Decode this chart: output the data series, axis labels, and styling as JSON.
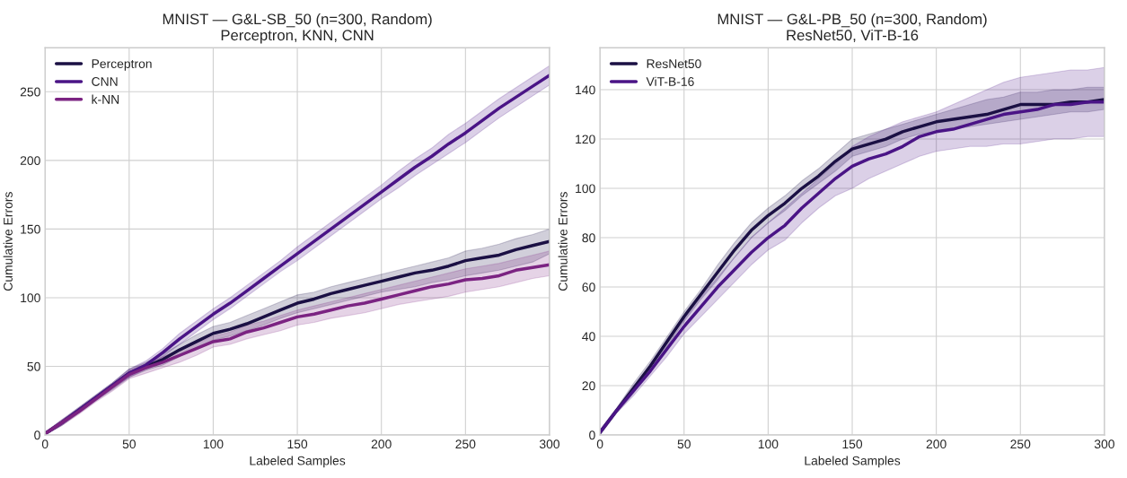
{
  "chart_data": [
    {
      "type": "line",
      "title": "MNIST — G&L-SB_50 (n=300, Random)",
      "subtitle": "Perceptron, KNN, CNN",
      "xlabel": "Labeled Samples",
      "ylabel": "Cumulative Errors",
      "x": [
        0,
        10,
        20,
        30,
        40,
        50,
        60,
        70,
        80,
        90,
        100,
        110,
        120,
        130,
        140,
        150,
        160,
        170,
        180,
        190,
        200,
        210,
        220,
        230,
        240,
        250,
        260,
        270,
        280,
        290,
        300
      ],
      "xlim": [
        0,
        300
      ],
      "xticks": [
        0,
        50,
        100,
        150,
        200,
        250,
        300
      ],
      "ylim": [
        0,
        282
      ],
      "yticks": [
        0,
        50,
        100,
        150,
        200,
        250
      ],
      "grid": true,
      "legend": "top left",
      "series": [
        {
          "name": "Perceptron",
          "color": "#1b1044",
          "values": [
            1,
            9,
            18,
            27,
            36,
            45,
            50,
            55,
            62,
            68,
            74,
            77,
            81,
            86,
            91,
            96,
            99,
            103,
            106,
            109,
            112,
            115,
            118,
            120,
            123,
            127,
            129,
            131,
            135,
            138,
            141
          ],
          "lower": [
            0,
            7,
            16,
            25,
            33,
            42,
            47,
            51,
            57,
            63,
            69,
            72,
            76,
            80,
            85,
            89,
            92,
            95,
            98,
            101,
            104,
            106,
            108,
            111,
            113,
            116,
            118,
            120,
            123,
            126,
            132
          ],
          "upper": [
            2,
            11,
            20,
            29,
            38,
            48,
            53,
            59,
            66,
            73,
            79,
            82,
            87,
            92,
            97,
            102,
            104,
            108,
            111,
            114,
            117,
            120,
            123,
            126,
            129,
            134,
            136,
            139,
            143,
            146,
            150
          ]
        },
        {
          "name": "CNN",
          "color": "#4a1486",
          "values": [
            1,
            9,
            18,
            27,
            36,
            45,
            51,
            60,
            70,
            79,
            88,
            96,
            105,
            114,
            123,
            132,
            141,
            150,
            159,
            168,
            177,
            186,
            195,
            203,
            212,
            220,
            229,
            238,
            246,
            254,
            262
          ],
          "lower": [
            0,
            7,
            16,
            25,
            34,
            42,
            48,
            57,
            66,
            75,
            84,
            92,
            101,
            110,
            119,
            127,
            136,
            145,
            154,
            163,
            172,
            180,
            189,
            197,
            205,
            213,
            222,
            231,
            239,
            247,
            255
          ],
          "upper": [
            2,
            11,
            20,
            29,
            38,
            48,
            54,
            63,
            74,
            83,
            92,
            100,
            109,
            118,
            127,
            137,
            146,
            155,
            164,
            173,
            182,
            192,
            201,
            209,
            219,
            227,
            236,
            245,
            253,
            261,
            269
          ]
        },
        {
          "name": "k-NN",
          "color": "#7b2382",
          "values": [
            1,
            9,
            17,
            26,
            35,
            44,
            49,
            53,
            58,
            63,
            68,
            70,
            75,
            78,
            82,
            86,
            88,
            91,
            94,
            96,
            99,
            102,
            105,
            108,
            110,
            113,
            114,
            116,
            120,
            122,
            124
          ],
          "lower": [
            0,
            7,
            15,
            24,
            32,
            41,
            45,
            49,
            53,
            58,
            64,
            66,
            70,
            73,
            76,
            80,
            82,
            85,
            87,
            89,
            92,
            95,
            97,
            99,
            101,
            104,
            106,
            108,
            111,
            114,
            116
          ],
          "upper": [
            2,
            11,
            19,
            28,
            37,
            47,
            52,
            57,
            62,
            67,
            72,
            75,
            80,
            83,
            87,
            91,
            94,
            97,
            100,
            103,
            106,
            109,
            112,
            115,
            118,
            121,
            123,
            125,
            128,
            131,
            134
          ]
        }
      ]
    },
    {
      "type": "line",
      "title": "MNIST — G&L-PB_50 (n=300, Random)",
      "subtitle": "ResNet50, ViT-B-16",
      "xlabel": "Labeled Samples",
      "ylabel": "Cumulative Errors",
      "x": [
        0,
        10,
        20,
        30,
        40,
        50,
        60,
        70,
        80,
        90,
        100,
        110,
        120,
        130,
        140,
        150,
        160,
        170,
        180,
        190,
        200,
        210,
        220,
        230,
        240,
        250,
        260,
        270,
        280,
        290,
        300
      ],
      "xlim": [
        0,
        300
      ],
      "xticks": [
        0,
        50,
        100,
        150,
        200,
        250,
        300
      ],
      "ylim": [
        0,
        157
      ],
      "yticks": [
        0,
        20,
        40,
        60,
        80,
        100,
        120,
        140
      ],
      "grid": true,
      "legend": "top left",
      "series": [
        {
          "name": "ResNet50",
          "color": "#1b1044",
          "values": [
            1,
            10,
            19,
            28,
            38,
            48,
            57,
            66,
            75,
            83,
            89,
            94,
            100,
            105,
            111,
            116,
            118,
            120,
            123,
            125,
            127,
            128,
            129,
            130,
            132,
            134,
            134,
            134,
            135,
            135,
            136
          ],
          "lower": [
            0,
            9,
            17,
            26,
            36,
            46,
            55,
            63,
            72,
            80,
            86,
            91,
            97,
            102,
            107,
            113,
            115,
            117,
            120,
            122,
            123,
            124,
            125,
            126,
            127,
            128,
            129,
            130,
            131,
            131,
            132
          ],
          "upper": [
            2,
            11,
            21,
            30,
            40,
            50,
            59,
            69,
            78,
            86,
            92,
            97,
            103,
            108,
            114,
            120,
            122,
            124,
            126,
            128,
            130,
            132,
            134,
            136,
            137,
            139,
            139,
            140,
            140,
            141,
            141
          ]
        },
        {
          "name": "ViT-B-16",
          "color": "#4a1486",
          "values": [
            1,
            10,
            18,
            26,
            35,
            44,
            52,
            60,
            67,
            74,
            80,
            85,
            92,
            98,
            104,
            109,
            112,
            114,
            117,
            121,
            123,
            124,
            126,
            128,
            130,
            131,
            132,
            134,
            134,
            135,
            135
          ],
          "lower": [
            0,
            9,
            16,
            24,
            32,
            41,
            48,
            55,
            62,
            69,
            75,
            79,
            86,
            92,
            97,
            100,
            104,
            107,
            110,
            113,
            115,
            116,
            117,
            117,
            118,
            118,
            119,
            120,
            120,
            121,
            121
          ],
          "upper": [
            2,
            11,
            20,
            28,
            38,
            47,
            56,
            64,
            72,
            80,
            86,
            92,
            98,
            104,
            110,
            117,
            121,
            124,
            127,
            129,
            131,
            134,
            137,
            140,
            143,
            145,
            146,
            147,
            148,
            148,
            149
          ]
        }
      ]
    }
  ]
}
